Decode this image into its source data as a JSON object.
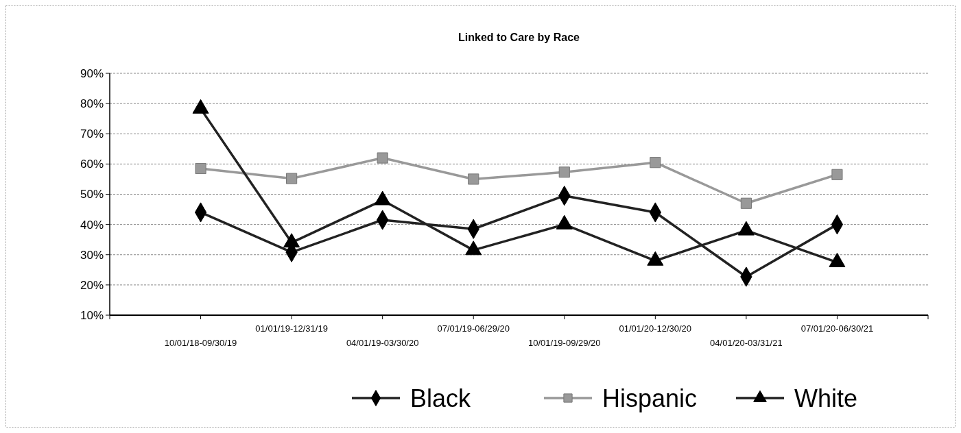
{
  "chart_data": {
    "type": "line",
    "title": "Linked to Care by Race",
    "categories": [
      "10/01/18-09/30/19",
      "01/01/19-12/31/19",
      "04/01/19-03/30/20",
      "07/01/19-06/29/20",
      "10/01/19-09/29/20",
      "01/01/20-12/30/20",
      "04/01/20-03/31/21",
      "07/01/20-06/30/21"
    ],
    "series": [
      {
        "name": "Black",
        "color": "#000000",
        "marker": "diamond",
        "values": [
          44,
          30.8,
          41.5,
          38.5,
          49.5,
          44,
          22.7,
          40
        ]
      },
      {
        "name": "Hispanic",
        "color": "#999999",
        "marker": "square",
        "values": [
          58.5,
          55.2,
          62,
          55,
          57.3,
          60.5,
          47,
          56.5
        ]
      },
      {
        "name": "White",
        "color": "#000000",
        "marker": "triangle",
        "values": [
          78.3,
          34,
          48,
          31.5,
          40,
          28,
          38,
          27.5
        ]
      }
    ],
    "ylim": [
      10,
      90
    ],
    "yticks": [
      {
        "value": 10,
        "label": "10%"
      },
      {
        "value": 20,
        "label": "20%"
      },
      {
        "value": 30,
        "label": "30%"
      },
      {
        "value": 40,
        "label": "40%"
      },
      {
        "value": 50,
        "label": "50%"
      },
      {
        "value": 60,
        "label": "60%"
      },
      {
        "value": 70,
        "label": "70%"
      },
      {
        "value": 80,
        "label": "80%"
      },
      {
        "value": 90,
        "label": "90%"
      }
    ],
    "grid": "y",
    "legend": "bottom"
  }
}
